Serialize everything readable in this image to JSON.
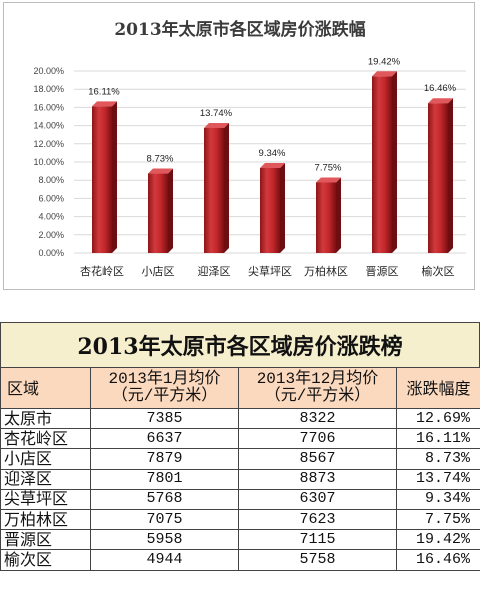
{
  "chart_data": {
    "type": "bar",
    "title": "2013年太原市各区域房价涨跌幅",
    "categories": [
      "杏花岭区",
      "小店区",
      "迎泽区",
      "尖草坪区",
      "万柏林区",
      "晋源区",
      "榆次区"
    ],
    "values": [
      16.11,
      8.73,
      13.74,
      9.34,
      7.75,
      19.42,
      16.46
    ],
    "value_labels": [
      "16.11%",
      "8.73%",
      "13.74%",
      "9.34%",
      "7.75%",
      "19.42%",
      "16.46%"
    ],
    "yticks": [
      "0.00%",
      "2.00%",
      "4.00%",
      "6.00%",
      "8.00%",
      "10.00%",
      "12.00%",
      "14.00%",
      "16.00%",
      "18.00%",
      "20.00%"
    ],
    "ylim": [
      0,
      20
    ],
    "grid": true,
    "legend": "none",
    "bar_color": "#c0262b"
  },
  "table": {
    "title": "2013年太原市各区域房价涨跌榜",
    "headers": {
      "region": "区域",
      "jan_line1": "2013年1月均价",
      "jan_line2": "（元/平方米）",
      "dec_line1": "2013年12月均价",
      "dec_line2": "（元/平方米）",
      "change": "涨跌幅度"
    },
    "rows": [
      {
        "region": "太原市",
        "jan": "7385",
        "dec": "8322",
        "change": "12.69%"
      },
      {
        "region": "杏花岭区",
        "jan": "6637",
        "dec": "7706",
        "change": "16.11%"
      },
      {
        "region": "小店区",
        "jan": "7879",
        "dec": "8567",
        "change": "8.73%"
      },
      {
        "region": "迎泽区",
        "jan": "7801",
        "dec": "8873",
        "change": "13.74%"
      },
      {
        "region": "尖草坪区",
        "jan": "5768",
        "dec": "6307",
        "change": "9.34%"
      },
      {
        "region": "万柏林区",
        "jan": "7075",
        "dec": "7623",
        "change": "7.75%"
      },
      {
        "region": "晋源区",
        "jan": "5958",
        "dec": "7115",
        "change": "19.42%"
      },
      {
        "region": "榆次区",
        "jan": "4944",
        "dec": "5758",
        "change": "16.46%"
      }
    ],
    "colors": {
      "title_bg": "#f6efce",
      "header_bg": "#fbd9be"
    }
  }
}
